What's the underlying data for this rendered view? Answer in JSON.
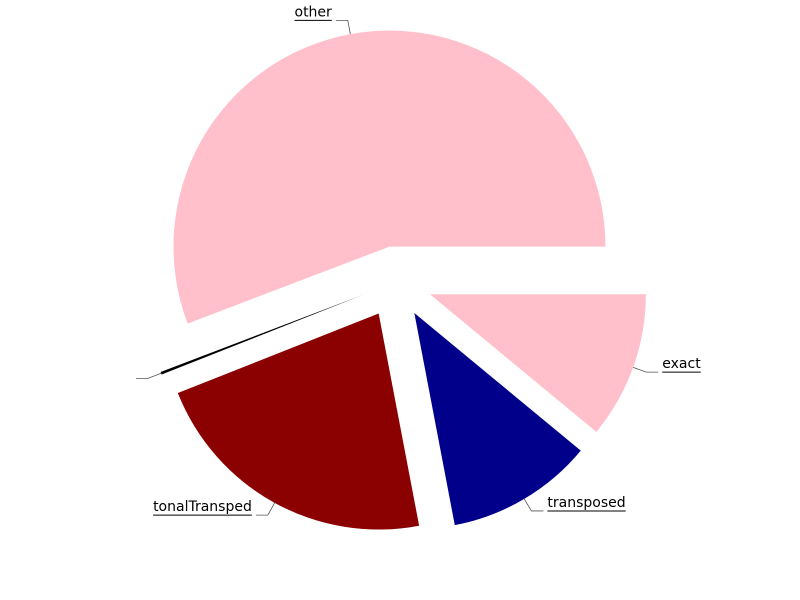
{
  "chart_data": {
    "type": "pie",
    "title": "",
    "start_angle_deg": 0,
    "direction": "clockwise",
    "exploded": true,
    "slices": [
      {
        "label": "exact",
        "value": 11,
        "color": "#FFC0CB"
      },
      {
        "label": "transposed",
        "value": 11,
        "color": "#00008B"
      },
      {
        "label": "tonalTransped",
        "value": 22,
        "color": "#8B0000"
      },
      {
        "label": "",
        "value": 0.2,
        "color": "#000000"
      },
      {
        "label": "other",
        "value": 55.8,
        "color": "#FFC0CB"
      }
    ]
  }
}
